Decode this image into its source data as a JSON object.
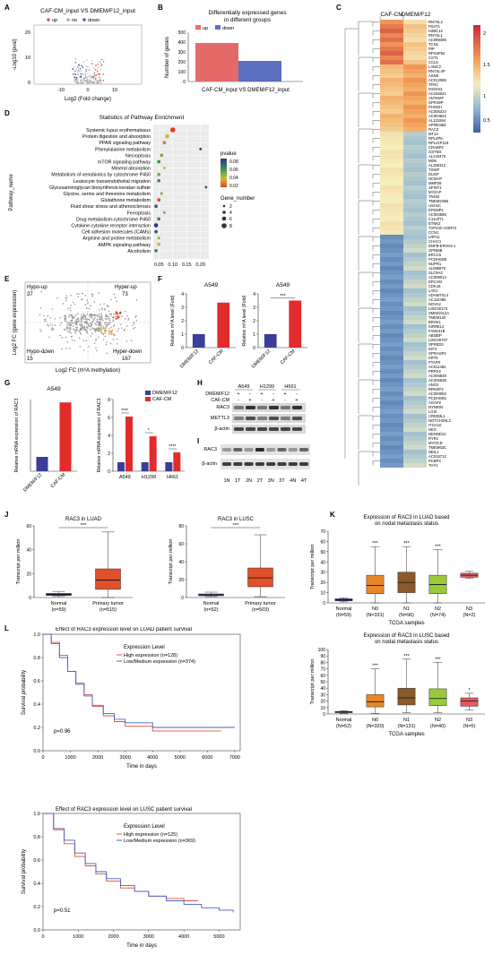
{
  "panel_labels": [
    "A",
    "B",
    "C",
    "D",
    "E",
    "F",
    "G",
    "H",
    "I",
    "J",
    "K",
    "L"
  ],
  "panelA": {
    "title": "CAF-CM_input VS DMEM/F12_input",
    "legend": [
      "up",
      "no",
      "down"
    ],
    "xlabel": "Log2 (Fold change)",
    "ylabel": "-Log10 (pval)",
    "xticks": [
      "-10",
      "0",
      "10"
    ],
    "yticks": [
      "0",
      "10",
      "20"
    ],
    "colors": {
      "up": "#e05050",
      "no": "#aaaaaa",
      "down": "#5060c0"
    }
  },
  "panelB": {
    "title": "Differentially expressed genes",
    "subtitle": "in different groups",
    "xlabel": "CAF-CM_input VS DMEM/F12_input",
    "ylabel": "Number of genes",
    "yticks": [
      "0",
      "100",
      "200",
      "300",
      "400",
      "500"
    ],
    "legend": [
      "up",
      "down"
    ],
    "colors": {
      "up": "#e46a6a",
      "down": "#5b6fbf"
    }
  },
  "panelC": {
    "col_headers": [
      "CAF-CM",
      "DMEM/F12"
    ],
    "scale_ticks": [
      "2",
      "1.5",
      "1",
      "0.5"
    ],
    "genes": [
      "RN7SL2",
      "PSAT1",
      "H2BC12",
      "RN7SL1",
      "AC099498",
      "TCN1",
      "PIP",
      "RPS4P54",
      "CST1",
      "CCL5",
      "LAMC2",
      "RN7SL4P",
      "ASNS",
      "AC012085",
      "TFRC",
      "OSGIN1",
      "AC245041",
      "ANTKMT",
      "GPR39P",
      "PHGDH",
      "AC005324",
      "AC004922",
      "AL121594",
      "AP000356",
      "RAC3",
      "MT1A",
      "RPL4P5",
      "RPL21P119",
      "CRABP2",
      "GSTM3",
      "AL133476",
      "MDK",
      "AL355312",
      "TXNIP",
      "DUSP",
      "NCMAP",
      "MMP28",
      "SPINT1",
      "MYZAP",
      "TNNI3",
      "TMEM225B",
      "USH1C",
      "EFEMP1",
      "AC004585",
      "C11orf71",
      "ETNK2",
      "TVP23C-CDRT4",
      "CCN1",
      "LRP11",
      "CHAC1",
      "DNFB-ERVK3-1",
      "GPNMB",
      "ERCC5",
      "PCDHGB5",
      "NUPR1",
      "AL096870",
      "SLC9A3",
      "AC008014",
      "EPCAM",
      "CDK18",
      "LAD1",
      "ADAMTSL4",
      "AC114490",
      "NOVA2",
      "LINC00173",
      "SMIM10L2A",
      "TMEM130",
      "BRSK1",
      "KIRREL2",
      "FAM131B",
      "ABI3BP",
      "LINC00707",
      "SPRED3",
      "IGF2",
      "GPRASP2",
      "KRT5",
      "PTAFR",
      "AC011462",
      "PRRX2",
      "AC005839",
      "AC005538",
      "ANO2",
      "RRN3P3",
      "AC000093",
      "PCDHGB1",
      "AGAP2",
      "NYNRIN",
      "LGI3",
      "CREB3L1",
      "NOTCH2NLC",
      "ITGA10",
      "NES",
      "DENND1C",
      "RYR1",
      "MYOCD",
      "TMEM63C",
      "NEIL1",
      "AC015712",
      "PCBP3",
      "THY1"
    ]
  },
  "panelD": {
    "title": "Statistics of Pathway Enrichment",
    "ylabel": "Pathway_name",
    "pathways": [
      "Systemic lupus erythematosus",
      "Protein digestion and absorption",
      "PPAR signaling pathway",
      "Phenylalanine metabolism",
      "Necroptosis",
      "mTOR signaling pathway",
      "Mineral absorption",
      "Metabolism of xenobiotics by cytochrome P450",
      "Leukocyte transendothelial migration",
      "Glycosaminoglycan biosynthesis-keratan sulfate",
      "Glycine, serine and threonine metabolism",
      "Glutathione metabolism",
      "Fluid shear stress and atherosclerosis",
      "Ferroptosis",
      "Drug metabolism-cytochrome P450",
      "Cytokine-cytokine receptor interaction",
      "Cell adhesion molecules (CAMs)",
      "Arginine and proline metabolism",
      "AMPK signaling pathway",
      "Alcoholism"
    ],
    "rich_factor": [
      0.1,
      0.08,
      0.07,
      0.2,
      0.06,
      0.05,
      0.07,
      0.05,
      0.05,
      0.22,
      0.06,
      0.05,
      0.04,
      0.07,
      0.05,
      0.04,
      0.04,
      0.05,
      0.05,
      0.04
    ],
    "pvalue": [
      0.02,
      0.04,
      0.03,
      0.08,
      0.05,
      0.06,
      0.04,
      0.05,
      0.06,
      0.07,
      0.05,
      0.02,
      0.07,
      0.03,
      0.06,
      0.08,
      0.07,
      0.05,
      0.04,
      0.06
    ],
    "gene_number": [
      8,
      6,
      4,
      2,
      4,
      4,
      2,
      4,
      4,
      2,
      2,
      4,
      4,
      2,
      4,
      6,
      4,
      2,
      4,
      4
    ],
    "xticks": [
      "0.05",
      "0.10",
      "0.15",
      "0.20"
    ],
    "legend_pvalue_title": "pvalue",
    "legend_pvalue_ticks": [
      "0.08",
      "0.06",
      "0.04",
      "0.02"
    ],
    "legend_gene_title": "Gene_number",
    "legend_gene_ticks": [
      "2",
      "4",
      "6",
      "8"
    ]
  },
  "panelE": {
    "xlabel": "Log2 FC (m⁶A methylation)",
    "ylabel": "Log2 FC (gene expression)",
    "quadrants": {
      "hypo_up": "Hypo-up",
      "hypo_up_n": "37",
      "hyper_up": "Hyper-up",
      "hyper_up_n": "73",
      "hypo_down": "Hypo-down",
      "hypo_down_n": "15",
      "hyper_down": "Hyper-down",
      "hyper_down_n": "167"
    }
  },
  "panelF": {
    "chart_data": [
      {
        "type": "bar",
        "title": "A549",
        "categories": [
          "DMEM/F12",
          "CAF-CM"
        ],
        "values": [
          1.0,
          3.35
        ],
        "ylabel": "Relative m⁶A level (Fold)",
        "ylim": [
          0,
          4
        ],
        "yticks": [
          "0",
          "1",
          "2",
          "3",
          "4"
        ],
        "colors": [
          "#3a3e9a",
          "#e22b2b"
        ]
      },
      {
        "type": "bar",
        "title": "A549",
        "categories": [
          "DMEM/F12",
          "CAF-CM"
        ],
        "values": [
          1.0,
          3.5
        ],
        "ylabel": "Relative m⁶A level (Fold)",
        "ylim": [
          0,
          4
        ],
        "yticks": [
          "0",
          "1",
          "2",
          "3",
          "4"
        ],
        "colors": [
          "#3a3e9a",
          "#e22b2b"
        ],
        "sig": "***"
      }
    ]
  },
  "panelG": {
    "chart_data": [
      {
        "type": "bar",
        "title": "A549",
        "categories": [
          "DMEM/F12",
          "CAF-CM"
        ],
        "values": [
          1.0,
          4.8
        ],
        "ylabel": "Relative mRNA expression of RAC3",
        "ylim": [
          0,
          5
        ],
        "colors": [
          "#3a3e9a",
          "#e22b2b"
        ]
      },
      {
        "type": "bar",
        "categories": [
          "A549",
          "H1299",
          "H661"
        ],
        "series": [
          {
            "name": "DMEM/F12",
            "values": [
              1.0,
              1.0,
              1.0
            ]
          },
          {
            "name": "CAF-CM",
            "values": [
              6.1,
              3.9,
              2.1
            ]
          }
        ],
        "ylabel": "Relative mRNA expression of RAC3",
        "ylim": [
          0,
          8
        ],
        "yticks": [
          "0",
          "2",
          "4",
          "6",
          "8"
        ],
        "sig": [
          "****",
          "*",
          "****"
        ],
        "colors": [
          "#3a3e9a",
          "#e22b2b"
        ]
      }
    ]
  },
  "panelH": {
    "cells": [
      "A549",
      "H1299",
      "H661"
    ],
    "rows": [
      "DMEM/F12",
      "CAF-CM"
    ],
    "signs": [
      [
        "+",
        "-",
        "+",
        "-",
        "+",
        "-"
      ],
      [
        "-",
        "+",
        "-",
        "+",
        "-",
        "+"
      ]
    ],
    "bands": [
      "RAC3",
      "METTL3",
      "β-actin"
    ]
  },
  "panelI": {
    "bands": [
      "RAC3",
      "β-actin"
    ],
    "lanes": [
      "1N",
      "1T",
      "2N",
      "2T",
      "3N",
      "3T",
      "4N",
      "4T"
    ]
  },
  "panelJ": {
    "chart_data": [
      {
        "type": "box",
        "title": "RAC3 in LUAD",
        "ylabel": "Transcript per million",
        "categories": [
          "Normal",
          "Primary tumor"
        ],
        "counts": [
          "(n=59)",
          "(n=515)"
        ],
        "yticks": [
          "0",
          "20",
          "40",
          "60"
        ],
        "ylim": [
          0,
          70
        ],
        "boxes": [
          {
            "min": 1,
            "q1": 2,
            "median": 3,
            "q3": 4,
            "max": 6
          },
          {
            "min": 0,
            "q1": 8,
            "median": 17,
            "q3": 28,
            "max": 64
          }
        ],
        "sig": "***",
        "colors": [
          "#3d3f9a",
          "#e0502a"
        ]
      },
      {
        "type": "box",
        "title": "RAC3 in LUSC",
        "ylabel": "Transcript per million",
        "categories": [
          "Normal",
          "Primary tumor"
        ],
        "counts": [
          "(n=52)",
          "(n=503)"
        ],
        "yticks": [
          "0",
          "20",
          "40",
          "60",
          "80"
        ],
        "ylim": [
          0,
          80
        ],
        "boxes": [
          {
            "min": 1,
            "q1": 2,
            "median": 3,
            "q3": 4,
            "max": 6
          },
          {
            "min": 1,
            "q1": 12,
            "median": 22,
            "q3": 33,
            "max": 70
          }
        ],
        "sig": "***",
        "colors": [
          "#3d3f9a",
          "#e0502a"
        ]
      }
    ]
  },
  "panelK": {
    "chart_data": [
      {
        "type": "box",
        "title": "Expression of RAC3 in LUAD based",
        "subtitle": "on nodal metastasis status",
        "xlabel": "TCGA samples",
        "ylabel": "Transcript per million",
        "categories": [
          "Normal",
          "N0",
          "N1",
          "N2",
          "N3"
        ],
        "counts": [
          "(N=59)",
          "(N=331)",
          "(N=96)",
          "(N=74)",
          "(N=2)"
        ],
        "yticks": [
          "0",
          "10",
          "20",
          "30",
          "40",
          "50",
          "60",
          "70"
        ],
        "ylim": [
          0,
          70
        ],
        "boxes": [
          {
            "min": 1,
            "q1": 2,
            "median": 3,
            "q3": 4,
            "max": 5
          },
          {
            "min": 0,
            "q1": 9,
            "median": 17,
            "q3": 27,
            "max": 55
          },
          {
            "min": 0,
            "q1": 10,
            "median": 20,
            "q3": 30,
            "max": 55
          },
          {
            "min": 0,
            "q1": 9,
            "median": 18,
            "q3": 27,
            "max": 52
          },
          {
            "min": 24,
            "q1": 25,
            "median": 27,
            "q3": 29,
            "max": 31
          }
        ],
        "sig": [
          "",
          "***",
          "***",
          "***",
          ""
        ],
        "colors": [
          "#3d3f9a",
          "#e8862a",
          "#8a5a2b",
          "#9ac93a",
          "#e05a5a"
        ]
      },
      {
        "type": "box",
        "title": "Expression of RAC3 in LUSC based",
        "subtitle": "on nodal metastasis status",
        "xlabel": "TCGA samples",
        "ylabel": "Transcript per million",
        "categories": [
          "Normal",
          "N0",
          "N1",
          "N2",
          "N3"
        ],
        "counts": [
          "(N=52)",
          "(N=320)",
          "(N=131)",
          "(N=40)",
          "(N=5)"
        ],
        "yticks": [
          "0",
          "10",
          "20",
          "30",
          "40",
          "50",
          "60",
          "70",
          "80",
          "90",
          "100"
        ],
        "ylim": [
          0,
          100
        ],
        "boxes": [
          {
            "min": 1,
            "q1": 2,
            "median": 3,
            "q3": 4,
            "max": 5
          },
          {
            "min": 1,
            "q1": 11,
            "median": 19,
            "q3": 30,
            "max": 70
          },
          {
            "min": 2,
            "q1": 14,
            "median": 25,
            "q3": 40,
            "max": 85
          },
          {
            "min": 2,
            "q1": 13,
            "median": 24,
            "q3": 39,
            "max": 80
          },
          {
            "min": 6,
            "q1": 12,
            "median": 20,
            "q3": 25,
            "max": 32
          }
        ],
        "sig": [
          "",
          "***",
          "***",
          "***",
          "*"
        ],
        "colors": [
          "#3d3f9a",
          "#e8862a",
          "#8a5a2b",
          "#9ac93a",
          "#e05a5a"
        ]
      }
    ]
  },
  "panelL": {
    "chart_data": [
      {
        "type": "line",
        "title": "Effect of RAC3 expression level on LUAD patient survival",
        "xlabel": "Time in days",
        "ylabel": "Survival probability",
        "legend_title": "Expression Level",
        "series": [
          {
            "name": "High expression (n=128)",
            "color": "#e0503a",
            "x": [
              0,
              300,
              600,
              900,
              1200,
              1500,
              1800,
              2200,
              2600,
              3000,
              4000,
              5000,
              6000,
              6500
            ],
            "y": [
              1.0,
              0.93,
              0.82,
              0.68,
              0.58,
              0.48,
              0.38,
              0.3,
              0.25,
              0.21,
              0.17,
              0.17,
              0.17,
              0.17
            ]
          },
          {
            "name": "Low/Medium expression (n=374)",
            "color": "#4a5fc0",
            "x": [
              0,
              300,
              600,
              900,
              1200,
              1500,
              1800,
              2200,
              2600,
              3000,
              4000,
              5000,
              6000,
              7000
            ],
            "y": [
              1.0,
              0.92,
              0.8,
              0.68,
              0.57,
              0.47,
              0.39,
              0.32,
              0.27,
              0.24,
              0.2,
              0.2,
              0.2,
              0.2
            ]
          }
        ],
        "pval": "p=0.96",
        "xticks": [
          "0",
          "1000",
          "2000",
          "3000",
          "4000",
          "5000",
          "6000",
          "7000"
        ],
        "yticks": [
          "0.0",
          "0.2",
          "0.4",
          "0.6",
          "0.8",
          "1.0"
        ],
        "xlim": [
          0,
          7200
        ],
        "ylim": [
          0,
          1
        ]
      },
      {
        "type": "line",
        "title": "Effect of RAC3 expression level on LUSC patient survival",
        "xlabel": "Time in days",
        "ylabel": "Survival probability",
        "legend_title": "Expression Level",
        "series": [
          {
            "name": "High expression (n=125)",
            "color": "#e0503a",
            "x": [
              0,
              300,
              600,
              900,
              1200,
              1500,
              1800,
              2200,
              2600,
              3000,
              3500,
              4000,
              4400
            ],
            "y": [
              1.0,
              0.86,
              0.74,
              0.63,
              0.55,
              0.48,
              0.42,
              0.36,
              0.33,
              0.29,
              0.27,
              0.25,
              0.25
            ]
          },
          {
            "name": "Low/Medium expression (n=369)",
            "color": "#4a5fc0",
            "x": [
              0,
              300,
              600,
              900,
              1200,
              1500,
              1800,
              2200,
              2600,
              3000,
              3500,
              4000,
              4500,
              5000,
              5400
            ],
            "y": [
              1.0,
              0.87,
              0.77,
              0.66,
              0.57,
              0.5,
              0.44,
              0.38,
              0.33,
              0.29,
              0.25,
              0.22,
              0.19,
              0.17,
              0.15
            ]
          }
        ],
        "pval": "p=0.51",
        "xticks": [
          "0",
          "1000",
          "2000",
          "3000",
          "4000",
          "5000"
        ],
        "yticks": [
          "0.0",
          "0.2",
          "0.4",
          "0.6",
          "0.8",
          "1.0"
        ],
        "xlim": [
          0,
          5600
        ],
        "ylim": [
          0,
          1
        ]
      }
    ]
  }
}
